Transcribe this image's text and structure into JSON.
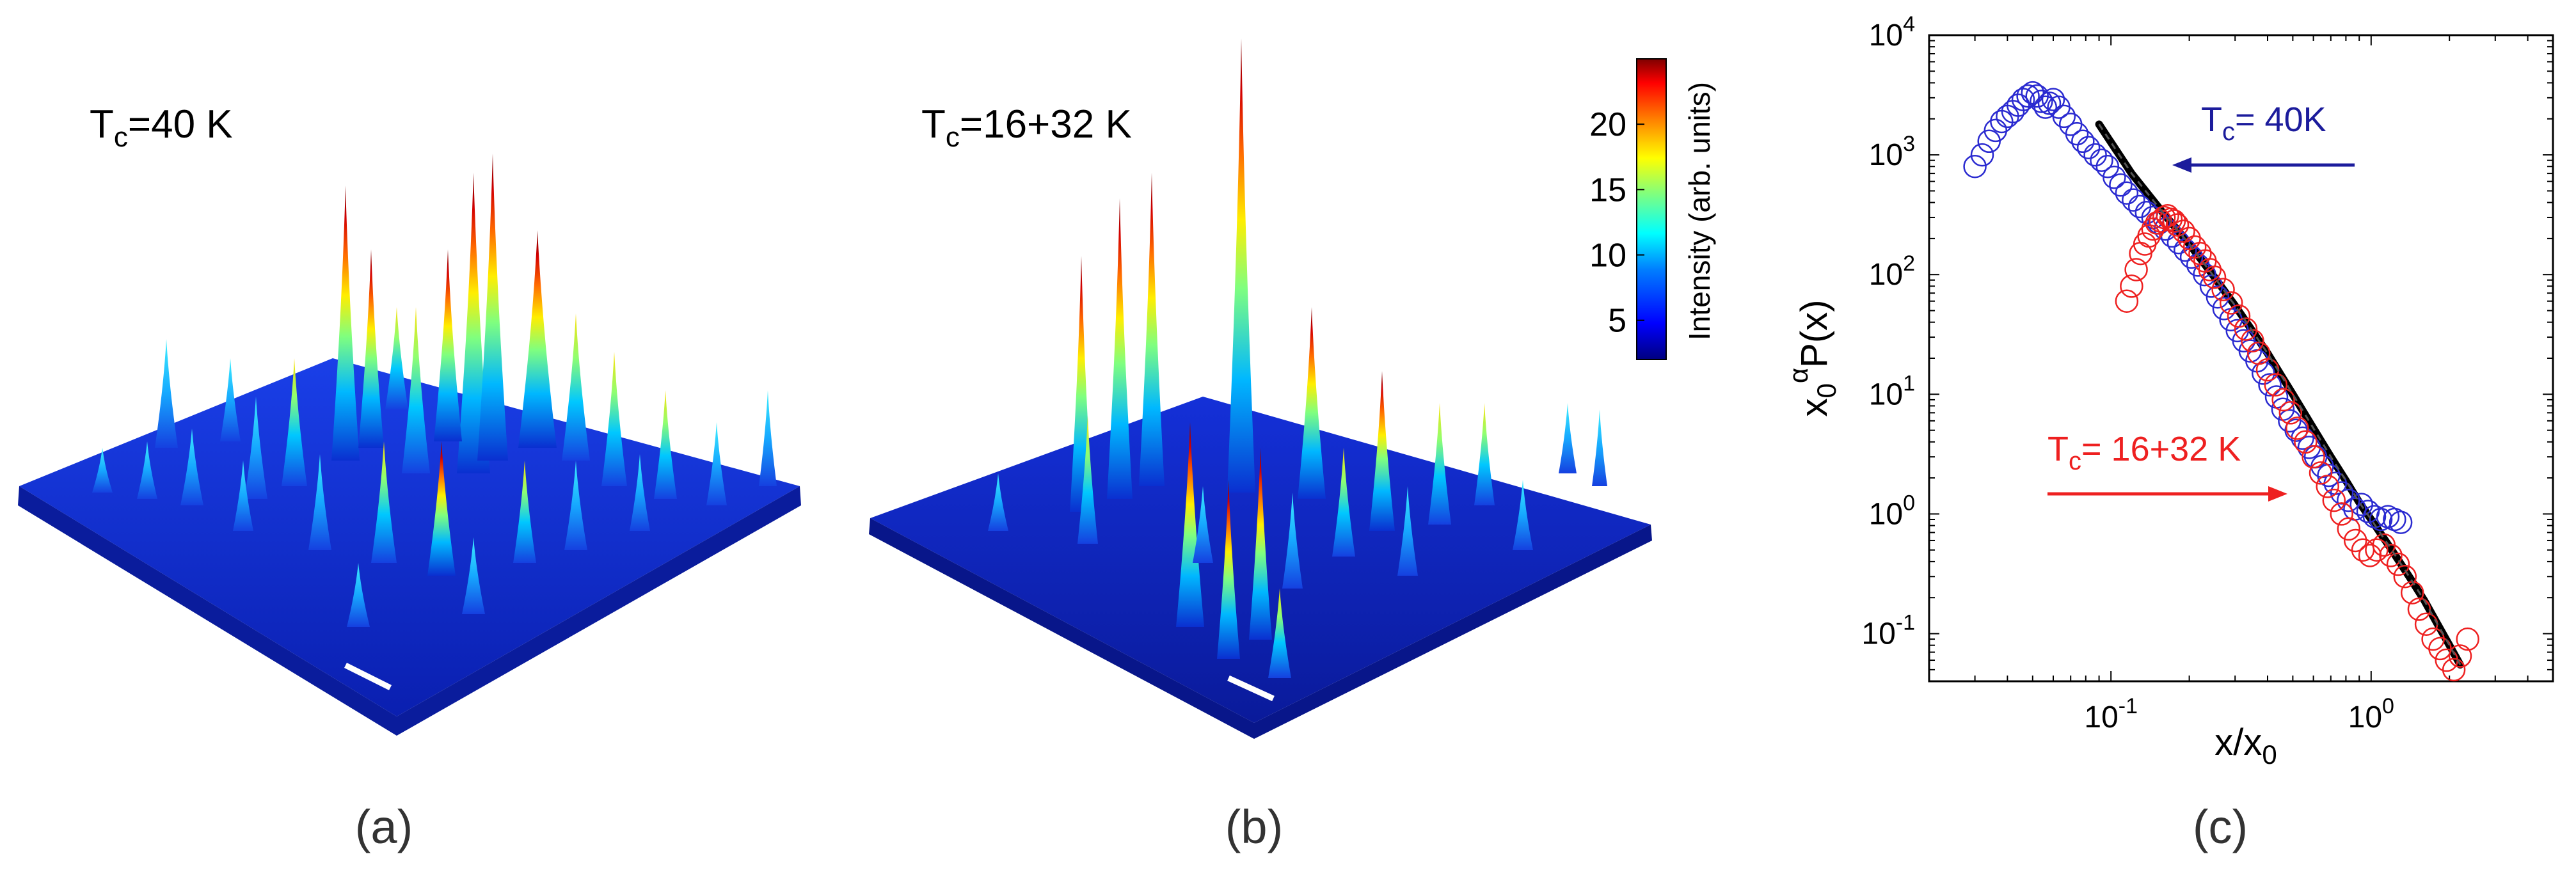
{
  "panels": {
    "a": {
      "label": "(a)",
      "title_main": "T",
      "title_sub": "c",
      "title_rest": "=40 K"
    },
    "b": {
      "label": "(b)",
      "title_main": "T",
      "title_sub": "c",
      "title_rest": "=16+32 K"
    },
    "c": {
      "label": "(c)"
    }
  },
  "colorbar": {
    "label": "Intensity (arb. units)",
    "ticks": [
      "20",
      "15",
      "10",
      "5"
    ],
    "range": [
      2,
      25
    ],
    "tick_values": [
      20,
      15,
      10,
      5
    ],
    "colors": [
      "#00007f",
      "#0000ff",
      "#007fff",
      "#00ffff",
      "#7fff7f",
      "#ffff00",
      "#ff7f00",
      "#ff0000",
      "#7f0000"
    ]
  },
  "chart_data": [
    {
      "type": "scatter",
      "panel": "c",
      "xscale": "log",
      "yscale": "log",
      "xlim": [
        0.02,
        5
      ],
      "ylim": [
        0.04,
        10000
      ],
      "xlabel": "x/x",
      "xlabel_sub": "0",
      "ylabel_a": "x",
      "ylabel_sub": "0",
      "ylabel_sup": "α",
      "ylabel_rest": "P(x)",
      "x_ticks": [
        {
          "value": 0.1,
          "base": "10",
          "exp": "-1"
        },
        {
          "value": 1,
          "base": "10",
          "exp": "0"
        }
      ],
      "y_ticks": [
        {
          "value": 0.1,
          "base": "10",
          "exp": "-1"
        },
        {
          "value": 1,
          "base": "10",
          "exp": "0"
        },
        {
          "value": 10,
          "base": "10",
          "exp": "1"
        },
        {
          "value": 100,
          "base": "10",
          "exp": "2"
        },
        {
          "value": 1000,
          "base": "10",
          "exp": "3"
        },
        {
          "value": 10000,
          "base": "10",
          "exp": "4"
        }
      ],
      "annotations": [
        {
          "name": "blue",
          "main": "T",
          "sub": "c",
          "rest": "= 40K",
          "color": "#1c1c9c"
        },
        {
          "name": "red",
          "main": "T",
          "sub": "c",
          "rest": "= 16+32 K",
          "color": "#ee2020"
        }
      ],
      "series": [
        {
          "name": "Tc = 40K",
          "color": "#2a2ad0",
          "x": [
            0.03,
            0.032,
            0.034,
            0.036,
            0.038,
            0.04,
            0.042,
            0.044,
            0.046,
            0.048,
            0.05,
            0.052,
            0.054,
            0.056,
            0.058,
            0.06,
            0.063,
            0.066,
            0.07,
            0.074,
            0.078,
            0.082,
            0.087,
            0.092,
            0.097,
            0.103,
            0.109,
            0.115,
            0.122,
            0.129,
            0.137,
            0.145,
            0.153,
            0.162,
            0.172,
            0.182,
            0.193,
            0.204,
            0.216,
            0.229,
            0.243,
            0.257,
            0.272,
            0.289,
            0.306,
            0.324,
            0.343,
            0.364,
            0.385,
            0.408,
            0.433,
            0.458,
            0.486,
            0.515,
            0.545,
            0.578,
            0.612,
            0.649,
            0.687,
            0.728,
            0.772,
            0.818,
            0.866,
            0.918,
            0.973,
            1.03,
            1.09,
            1.16,
            1.23,
            1.3
          ],
          "y": [
            800,
            1000,
            1300,
            1600,
            1900,
            2100,
            2300,
            2600,
            2900,
            3100,
            3300,
            3100,
            2800,
            2500,
            2700,
            2900,
            2500,
            2100,
            1800,
            1500,
            1300,
            1150,
            1000,
            900,
            800,
            650,
            560,
            480,
            420,
            370,
            330,
            300,
            270,
            240,
            210,
            185,
            160,
            140,
            120,
            100,
            80,
            65,
            52,
            42,
            34,
            28,
            23,
            19,
            15,
            12,
            9.5,
            7.5,
            6,
            5,
            4.3,
            3.6,
            3,
            2.5,
            2.1,
            1.8,
            1.5,
            1.3,
            1.1,
            1.2,
            1.05,
            0.95,
            0.9,
            0.95,
            0.9,
            0.85
          ]
        },
        {
          "name": "Tc = 16+32 K",
          "color": "#ee2020",
          "x": [
            0.115,
            0.12,
            0.125,
            0.13,
            0.135,
            0.14,
            0.145,
            0.15,
            0.155,
            0.16,
            0.165,
            0.17,
            0.175,
            0.18,
            0.19,
            0.2,
            0.21,
            0.22,
            0.23,
            0.24,
            0.25,
            0.27,
            0.29,
            0.31,
            0.33,
            0.35,
            0.37,
            0.4,
            0.43,
            0.46,
            0.49,
            0.52,
            0.56,
            0.6,
            0.64,
            0.68,
            0.72,
            0.77,
            0.82,
            0.87,
            0.93,
            0.99,
            1.05,
            1.12,
            1.19,
            1.27,
            1.35,
            1.44,
            1.53,
            1.63,
            1.73,
            1.84,
            1.95,
            2.08,
            2.2,
            2.35
          ],
          "y": [
            60,
            80,
            110,
            150,
            180,
            210,
            240,
            270,
            280,
            300,
            310,
            290,
            280,
            260,
            230,
            200,
            170,
            150,
            130,
            110,
            95,
            75,
            58,
            45,
            35,
            28,
            22,
            16,
            12,
            9,
            7,
            5.2,
            4,
            3,
            2.2,
            1.7,
            1.3,
            1.0,
            0.75,
            0.6,
            0.5,
            0.45,
            0.5,
            0.55,
            0.45,
            0.38,
            0.3,
            0.22,
            0.16,
            0.12,
            0.09,
            0.075,
            0.06,
            0.05,
            0.065,
            0.09
          ]
        },
        {
          "name": "fit",
          "color": "#000000",
          "x": [
            0.09,
            0.12,
            0.16,
            0.2,
            0.25,
            0.3,
            0.4,
            0.5,
            0.6,
            0.7,
            0.8,
            0.9,
            1.0,
            1.2,
            1.4,
            1.6,
            1.8,
            2.0,
            2.2
          ],
          "y": [
            1800,
            700,
            320,
            180,
            95,
            55,
            22,
            10,
            5.2,
            3.0,
            1.9,
            1.25,
            0.9,
            0.5,
            0.3,
            0.19,
            0.12,
            0.08,
            0.055
          ]
        }
      ]
    }
  ]
}
